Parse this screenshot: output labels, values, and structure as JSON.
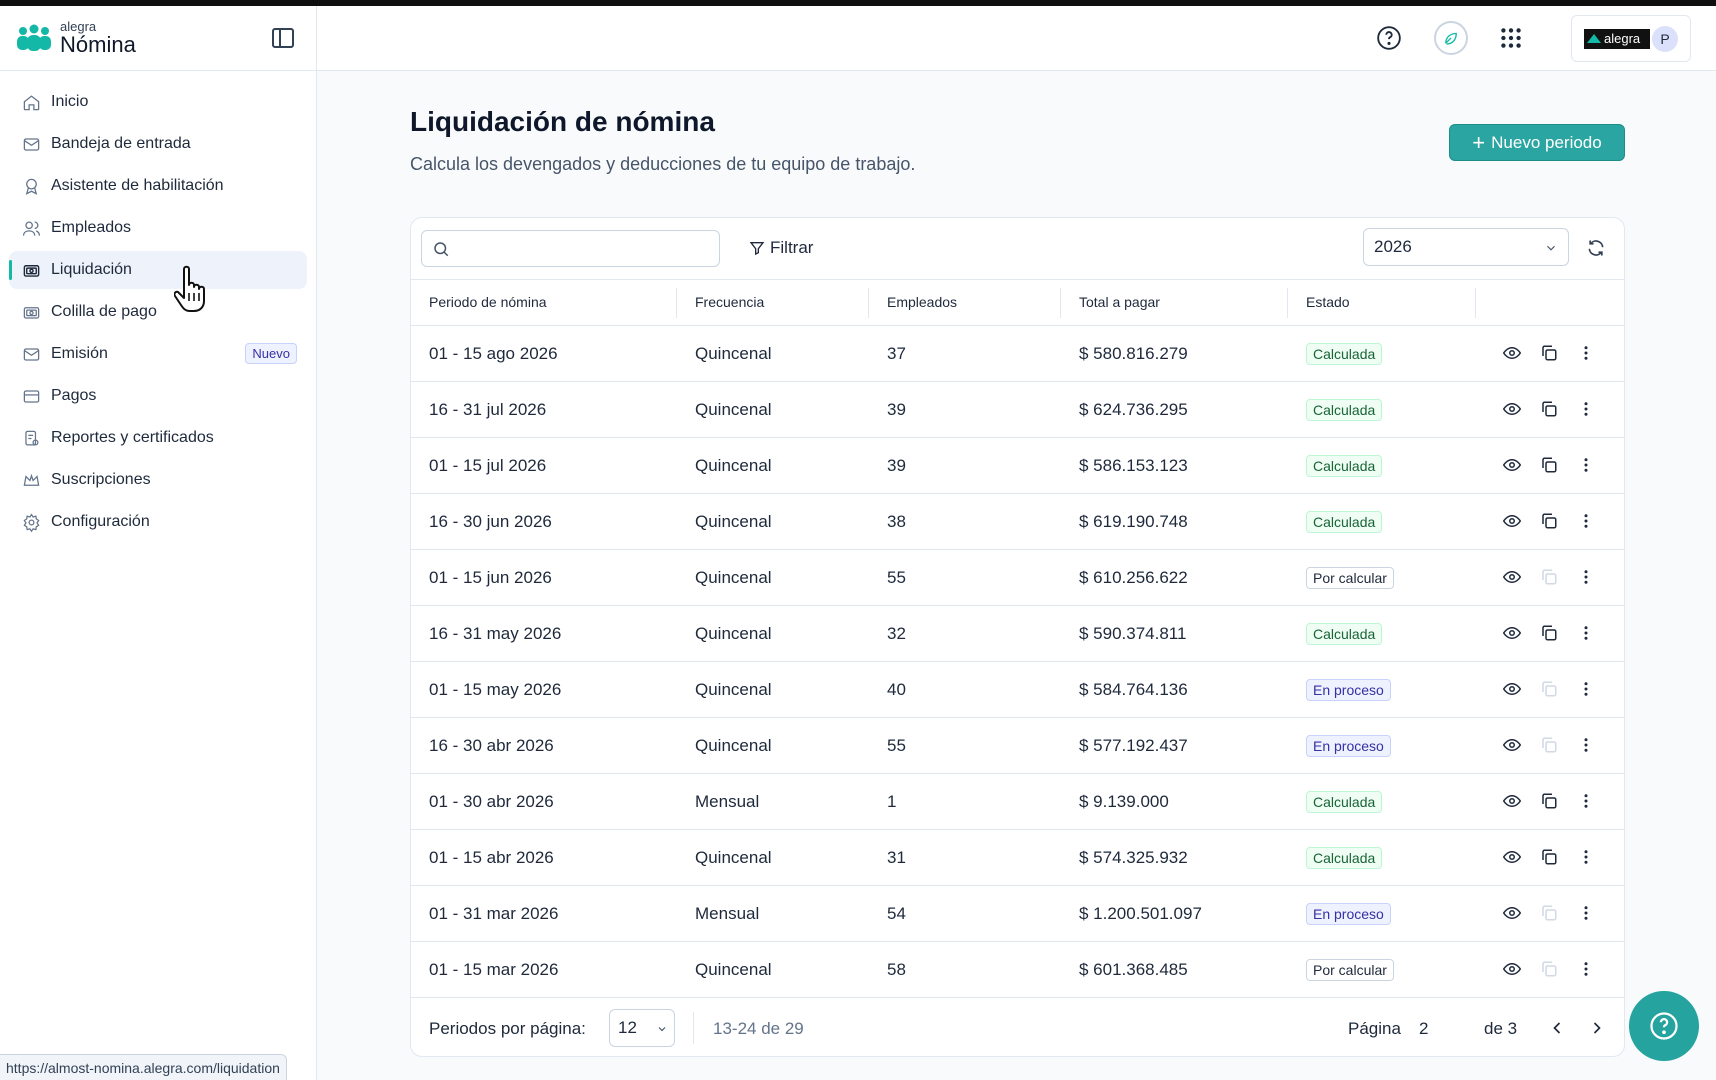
{
  "brand": {
    "small": "alegra",
    "big": "Nómina"
  },
  "sidebar": {
    "items": [
      {
        "label": "Inicio",
        "icon": "home-icon"
      },
      {
        "label": "Bandeja de entrada",
        "icon": "inbox-icon"
      },
      {
        "label": "Asistente de habilitación",
        "icon": "award-icon"
      },
      {
        "label": "Empleados",
        "icon": "users-icon"
      },
      {
        "label": "Liquidación",
        "icon": "payroll-icon",
        "active": true
      },
      {
        "label": "Colilla de pago",
        "icon": "receipt-icon"
      },
      {
        "label": "Emisión",
        "icon": "mail-icon",
        "badge": "Nuevo"
      },
      {
        "label": "Pagos",
        "icon": "card-icon"
      },
      {
        "label": "Reportes y certificados",
        "icon": "report-icon"
      },
      {
        "label": "Suscripciones",
        "icon": "crown-icon"
      },
      {
        "label": "Configuración",
        "icon": "gear-icon"
      }
    ]
  },
  "header": {
    "alegra_tag": "alegra",
    "avatar_initial": "P"
  },
  "main": {
    "title": "Liquidación de nómina",
    "subtitle": "Calcula los devengados y deducciones de tu equipo de trabajo.",
    "new_button": "Nuevo periodo"
  },
  "toolbar": {
    "search_placeholder": "",
    "filter_label": "Filtrar",
    "year": "2026"
  },
  "table": {
    "columns": [
      "Periodo de nómina",
      "Frecuencia",
      "Empleados",
      "Total a pagar",
      "Estado"
    ],
    "rows": [
      {
        "period": "01 - 15 ago 2026",
        "freq": "Quincenal",
        "emp": "37",
        "total": "$ 580.816.279",
        "status": "Calculada",
        "kind": "calc"
      },
      {
        "period": "16 - 31 jul 2026",
        "freq": "Quincenal",
        "emp": "39",
        "total": "$ 624.736.295",
        "status": "Calculada",
        "kind": "calc"
      },
      {
        "period": "01 - 15 jul 2026",
        "freq": "Quincenal",
        "emp": "39",
        "total": "$ 586.153.123",
        "status": "Calculada",
        "kind": "calc"
      },
      {
        "period": "16 - 30 jun 2026",
        "freq": "Quincenal",
        "emp": "38",
        "total": "$ 619.190.748",
        "status": "Calculada",
        "kind": "calc"
      },
      {
        "period": "01 - 15 jun 2026",
        "freq": "Quincenal",
        "emp": "55",
        "total": "$ 610.256.622",
        "status": "Por calcular",
        "kind": "pend"
      },
      {
        "period": "16 - 31 may 2026",
        "freq": "Quincenal",
        "emp": "32",
        "total": "$ 590.374.811",
        "status": "Calculada",
        "kind": "calc"
      },
      {
        "period": "01 - 15 may 2026",
        "freq": "Quincenal",
        "emp": "40",
        "total": "$ 584.764.136",
        "status": "En proceso",
        "kind": "proc"
      },
      {
        "period": "16 - 30 abr 2026",
        "freq": "Quincenal",
        "emp": "55",
        "total": "$ 577.192.437",
        "status": "En proceso",
        "kind": "proc"
      },
      {
        "period": "01 - 30 abr 2026",
        "freq": "Mensual",
        "emp": "1",
        "total": "$ 9.139.000",
        "status": "Calculada",
        "kind": "calc"
      },
      {
        "period": "01 - 15 abr 2026",
        "freq": "Quincenal",
        "emp": "31",
        "total": "$ 574.325.932",
        "status": "Calculada",
        "kind": "calc"
      },
      {
        "period": "01 - 31 mar 2026",
        "freq": "Mensual",
        "emp": "54",
        "total": "$ 1.200.501.097",
        "status": "En proceso",
        "kind": "proc"
      },
      {
        "period": "01 - 15 mar 2026",
        "freq": "Quincenal",
        "emp": "58",
        "total": "$ 601.368.485",
        "status": "Por calcular",
        "kind": "pend"
      }
    ]
  },
  "pagination": {
    "per_page_label": "Periodos por página:",
    "per_page": "12",
    "range": "13-24 de 29",
    "page_label": "Página",
    "page": "2",
    "of_label": "de 3"
  },
  "status_url": "https://almost-nomina.alegra.com/liquidation",
  "colors": {
    "accent": "#2aa5a1",
    "active_bar": "#14b8a6"
  }
}
